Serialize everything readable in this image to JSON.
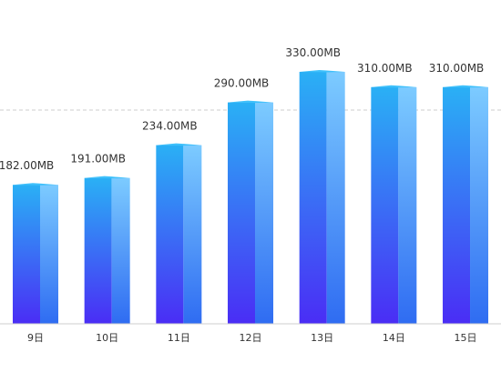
{
  "chart_data": {
    "type": "bar",
    "categories": [
      "9日",
      "10日",
      "11日",
      "12日",
      "13日",
      "14日",
      "15日"
    ],
    "values": [
      182,
      191,
      234,
      290,
      330,
      310,
      310
    ],
    "value_labels": [
      "182.00MB",
      "191.00MB",
      "234.00MB",
      "290.00MB",
      "330.00MB",
      "310.00MB",
      "310.00MB"
    ],
    "unit": "MB",
    "ylim": [
      0,
      400
    ],
    "grid": false,
    "reference_line": 280,
    "style": "3d-gradient-column",
    "colors": {
      "front_top": "#2ab0f5",
      "front_bottom": "#4a2df5",
      "side_top": "#7ccbff",
      "side_bottom": "#2f6cf2",
      "top_face": "#3ec0fb",
      "axis": "#cfcfcf",
      "reference_line": "#cccccc",
      "text": "#333333"
    }
  }
}
